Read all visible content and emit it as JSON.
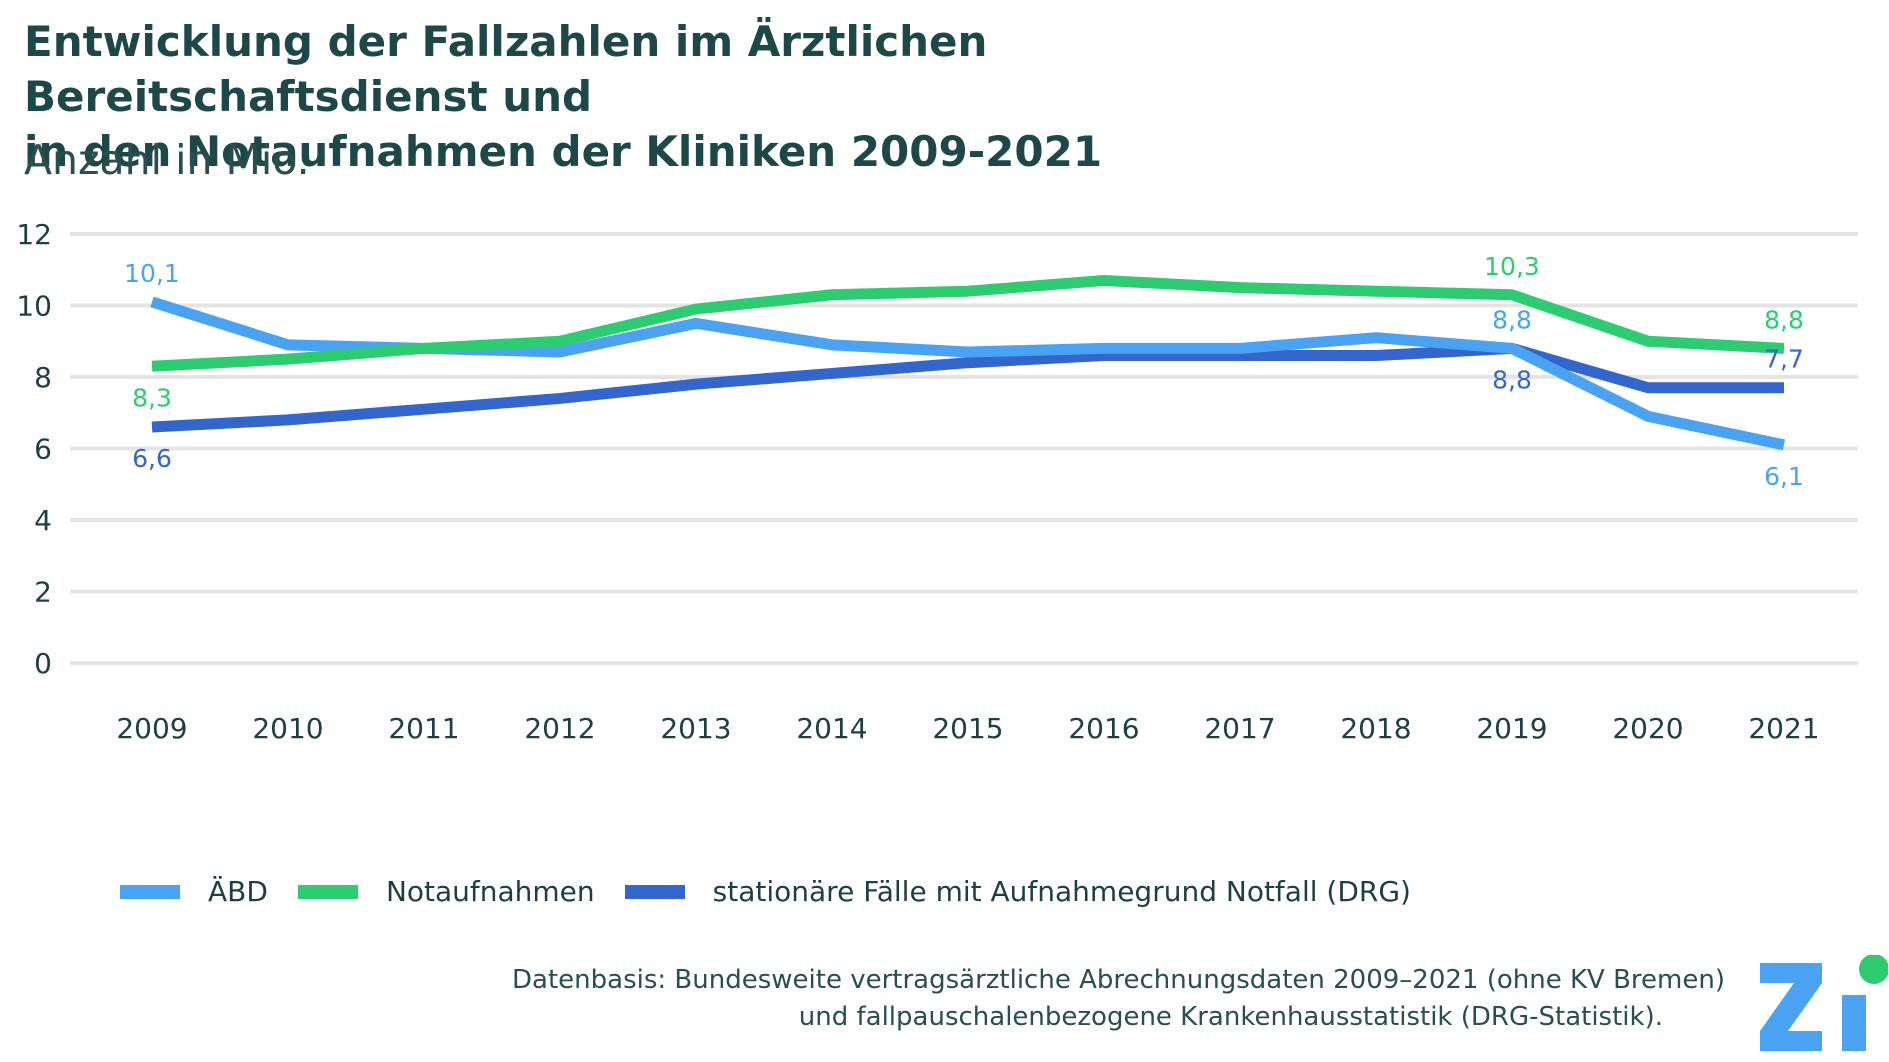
{
  "title_line1": "Entwicklung der Fallzahlen im Ärztlichen Bereitschaftsdienst und",
  "title_line2": "in den Notaufnahmen der Kliniken 2009-2021",
  "subtitle": "Anzahl in Mio.",
  "source_line1": "Datenbasis: Bundesweite vertragsärztliche Abrechnungsdaten 2009–2021 (ohne KV Bremen)",
  "source_line2": "und fallpauschalenbezogene Krankenhausstatistik (DRG-Statistik).",
  "logo_text": "Zi",
  "chart_data": {
    "type": "line",
    "title": "Entwicklung der Fallzahlen im Ärztlichen Bereitschaftsdienst und in den Notaufnahmen der Kliniken 2009-2021",
    "ylabel": "Anzahl in Mio.",
    "xlabel": "",
    "categories": [
      "2009",
      "2010",
      "2011",
      "2012",
      "2013",
      "2014",
      "2015",
      "2016",
      "2017",
      "2018",
      "2019",
      "2020",
      "2021"
    ],
    "ylim": [
      0,
      12
    ],
    "yticks": [
      0,
      2,
      4,
      6,
      8,
      10,
      12
    ],
    "grid": true,
    "legend_position": "bottom",
    "series": [
      {
        "name": "ÄBD",
        "color": "#4aa3f2",
        "values": [
          10.1,
          8.9,
          8.8,
          8.7,
          9.5,
          8.9,
          8.7,
          8.8,
          8.8,
          9.1,
          8.8,
          6.9,
          6.1
        ],
        "labels": [
          {
            "index": 0,
            "text": "10,1",
            "pos": "above"
          },
          {
            "index": 10,
            "text": "8,8",
            "pos": "above"
          },
          {
            "index": 12,
            "text": "6,1",
            "pos": "below"
          }
        ]
      },
      {
        "name": "Notaufnahmen",
        "color": "#2ecc71",
        "values": [
          8.3,
          8.5,
          8.8,
          9.0,
          9.9,
          10.3,
          10.4,
          10.7,
          10.5,
          10.4,
          10.3,
          9.0,
          8.8
        ],
        "labels": [
          {
            "index": 0,
            "text": "8,3",
            "pos": "below"
          },
          {
            "index": 10,
            "text": "10,3",
            "pos": "above"
          },
          {
            "index": 12,
            "text": "8,8",
            "pos": "above"
          }
        ]
      },
      {
        "name": "stationäre Fälle mit Aufnahmegrund Notfall (DRG)",
        "color": "#3366cc",
        "values": [
          6.6,
          6.8,
          7.1,
          7.4,
          7.8,
          8.1,
          8.4,
          8.6,
          8.6,
          8.6,
          8.8,
          7.7,
          7.7
        ],
        "labels": [
          {
            "index": 0,
            "text": "6,6",
            "pos": "below"
          },
          {
            "index": 10,
            "text": "8,8",
            "pos": "below"
          },
          {
            "index": 12,
            "text": "7,7",
            "pos": "above"
          }
        ]
      }
    ]
  }
}
